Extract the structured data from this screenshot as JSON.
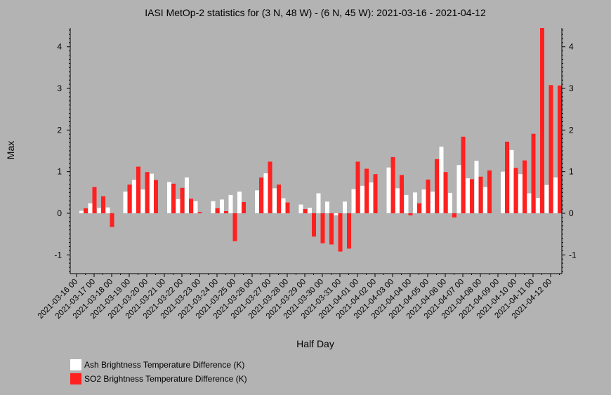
{
  "chart_data": {
    "type": "bar",
    "title": "IASI MetOp-2 statistics for (3 N, 48 W) - (6 N, 45 W): 2021-03-16 - 2021-04-12",
    "xlabel": "Half Day",
    "ylabel": "Max",
    "ylim": [
      -1.45,
      4.45
    ],
    "yticks": [
      -1,
      0,
      1,
      2,
      3,
      4
    ],
    "grid": false,
    "legend_position": "bottom-left",
    "x_tick_labels": [
      "2021-03-16 00",
      "2021-03-17 00",
      "2021-03-18 00",
      "2021-03-19 00",
      "2021-03-20 00",
      "2021-03-21 00",
      "2021-03-22 00",
      "2021-03-23 00",
      "2021-03-24 00",
      "2021-03-25 00",
      "2021-03-26 00",
      "2021-03-27 00",
      "2021-03-28 00",
      "2021-03-29 00",
      "2021-03-30 00",
      "2021-03-31 00",
      "2021-04-01 00",
      "2021-04-02 00",
      "2021-04-03 00",
      "2021-04-04 00",
      "2021-04-05 00",
      "2021-04-06 00",
      "2021-04-07 00",
      "2021-04-08 00",
      "2021-04-09 00",
      "2021-04-10 00",
      "2021-04-11 00",
      "2021-04-12 00"
    ],
    "series": [
      {
        "name": "Ash Brightness Temperature Difference (K)",
        "color": "#ffffff",
        "values": [
          0.06,
          0.24,
          0.13,
          0.14,
          null,
          0.52,
          0.8,
          0.57,
          0.95,
          null,
          0.75,
          0.34,
          0.86,
          0.29,
          null,
          0.29,
          0.33,
          0.44,
          0.52,
          null,
          0.55,
          0.96,
          0.6,
          0.36,
          null,
          0.21,
          0.13,
          0.48,
          0.28,
          -0.05,
          0.28,
          0.58,
          0.66,
          0.74,
          null,
          1.1,
          0.6,
          0.44,
          0.5,
          0.57,
          0.52,
          1.6,
          0.49,
          1.16,
          0.84,
          1.26,
          0.63,
          null,
          1.0,
          1.52,
          0.94,
          0.48,
          0.37,
          0.68,
          0.86
        ]
      },
      {
        "name": "SO2 Brightness Temperature Difference (K)",
        "color": "#ff2020",
        "values": [
          0.12,
          0.63,
          0.41,
          -0.33,
          null,
          0.69,
          1.12,
          0.99,
          0.8,
          null,
          0.71,
          0.61,
          0.35,
          0.03,
          null,
          0.12,
          0.05,
          -0.67,
          0.27,
          null,
          0.86,
          1.24,
          0.69,
          0.26,
          null,
          0.1,
          -0.56,
          -0.72,
          -0.75,
          -0.92,
          -0.85,
          1.24,
          1.07,
          0.94,
          null,
          1.35,
          0.92,
          -0.05,
          0.24,
          0.81,
          1.3,
          0.99,
          -0.1,
          1.84,
          0.82,
          0.88,
          1.03,
          null,
          1.72,
          1.09,
          1.27,
          1.91,
          4.45,
          3.08,
          3.07
        ]
      }
    ]
  }
}
